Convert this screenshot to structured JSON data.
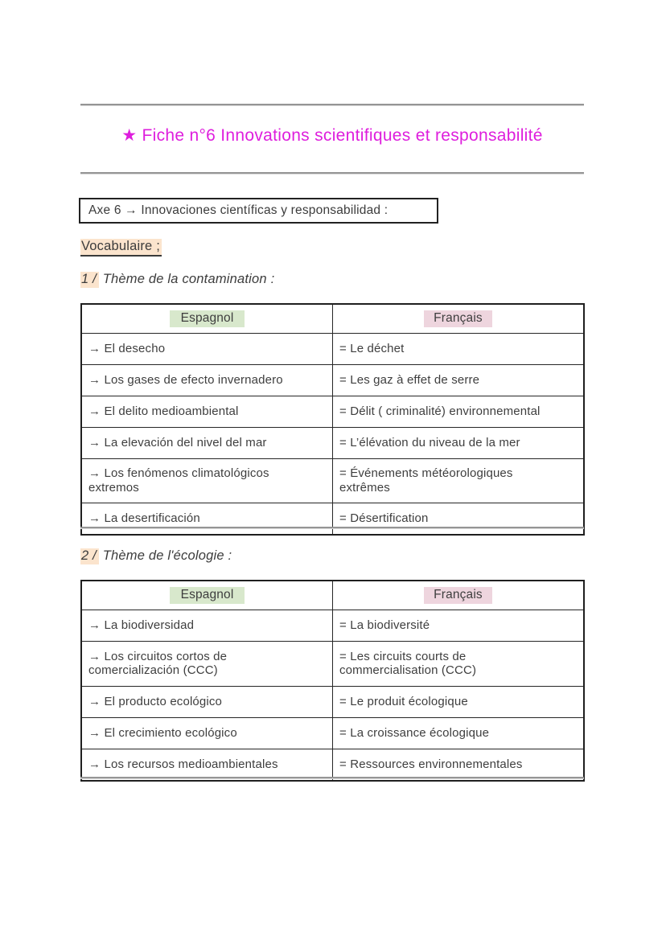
{
  "title": {
    "text": "★ Fiche n°6 Innovations scientifiques et responsabilité"
  },
  "axe_box": {
    "text": "Axe 6 → Innovaciones científicas y responsabilidad :"
  },
  "vocab_heading": {
    "text": "Vocabulaire ;"
  },
  "section1": {
    "number": "1 /",
    "title": "Thème de la contamination :",
    "col_es": "Espagnol",
    "col_fr": "Français",
    "rows": [
      {
        "es": "→ El desecho",
        "fr": "= Le déchet"
      },
      {
        "es": "→ Los gases de efecto invernadero",
        "fr": "= Les gaz à effet de serre"
      },
      {
        "es": "→ El delito medioambiental",
        "fr": "= Délit ( criminalité) environnemental"
      },
      {
        "es": "→ La elevación del nivel del mar",
        "fr": "= L’élévation du niveau de la mer"
      },
      {
        "es": "→ Los fenómenos climatológicos\nextremos",
        "fr": "= Événements météorologiques\nextrêmes"
      },
      {
        "es": "→ La desertificación",
        "fr": "= Désertification"
      }
    ]
  },
  "section2": {
    "number": "2 /",
    "title": "Thème de l'écologie :",
    "col_es": "Espagnol",
    "col_fr": "Français",
    "rows": [
      {
        "es": "→ La biodiversidad",
        "fr": "= La biodiversité"
      },
      {
        "es": "→ Los circuitos cortos de\ncomercialización (CCC)",
        "fr": "= Les circuits courts de\ncommercialisation (CCC)"
      },
      {
        "es": "→ El producto ecológico",
        "fr": "= Le produit écologique"
      },
      {
        "es": "→ El crecimiento ecológico",
        "fr": "= La croissance écologique"
      },
      {
        "es": "→ Los recursos medioambientales",
        "fr": "= Ressources environnementales"
      }
    ]
  },
  "colors": {
    "title-magenta": "#de1edd",
    "hl-peach": "#fbe4cd",
    "hl-green": "#d8e8cc",
    "hl-pink": "#eed5de"
  }
}
